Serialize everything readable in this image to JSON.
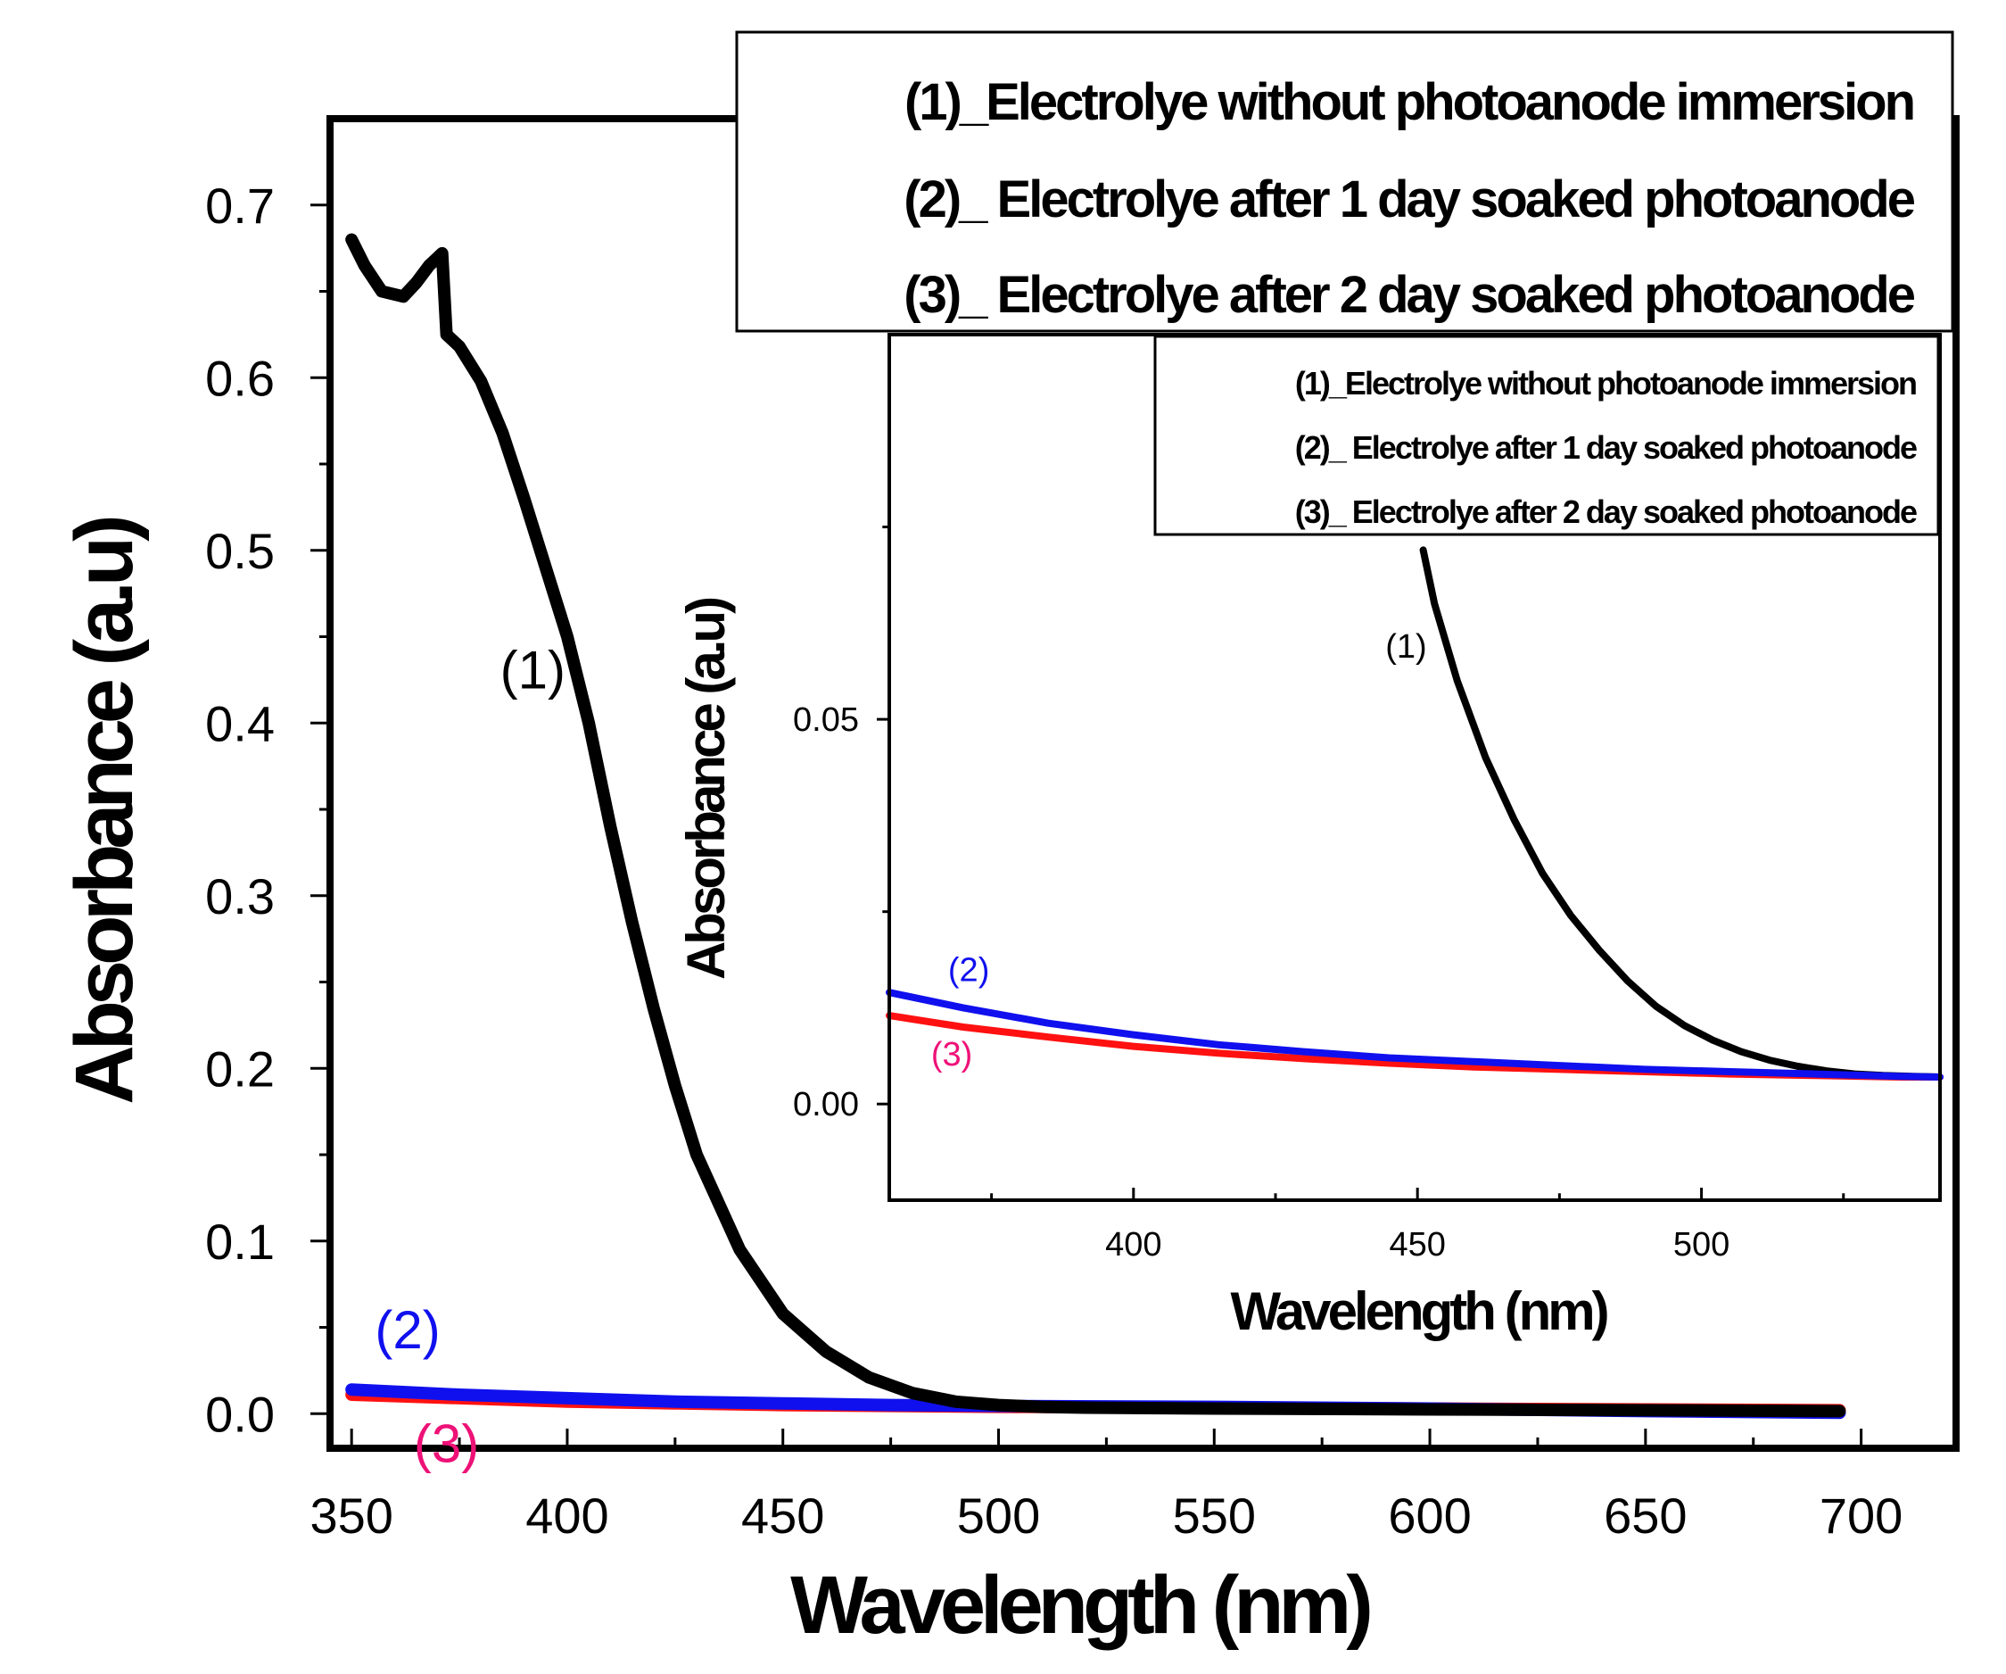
{
  "chart_data": [
    {
      "type": "line",
      "role": "main",
      "xlabel": "Wavelength (nm)",
      "ylabel": "Absorbance (a.u)",
      "xlim": [
        345,
        722
      ],
      "ylim": [
        -0.02,
        0.75
      ],
      "xticks": [
        350,
        400,
        450,
        500,
        550,
        600,
        650,
        700
      ],
      "xtick_labels": [
        "350",
        "400",
        "450",
        "500",
        "550",
        "600",
        "650",
        "700"
      ],
      "yticks": [
        0.0,
        0.1,
        0.2,
        0.3,
        0.4,
        0.5,
        0.6,
        0.7
      ],
      "ytick_labels": [
        "0.0",
        "0.1",
        "0.2",
        "0.3",
        "0.4",
        "0.5",
        "0.6",
        "0.7"
      ],
      "legend": {
        "position": "top-right",
        "entries": [
          "(1)_Electrolye without photoanode immersion",
          "(2)_ Electrolye after 1 day soaked photoanode",
          "(3)_ Electrolye after 2 day soaked photoanode"
        ]
      },
      "annotations": [
        {
          "text": "(1)",
          "series": 0,
          "at": [
            392,
            0.42
          ],
          "color": "#000000"
        },
        {
          "text": "(2)",
          "series": 1,
          "at": [
            363,
            0.038
          ],
          "color": "#1010ee"
        },
        {
          "text": "(3)",
          "series": 2,
          "at": [
            372,
            -0.028
          ],
          "color": "#ee1177"
        }
      ],
      "series": [
        {
          "name": "(1)",
          "color": "#000000",
          "x": [
            350,
            353,
            357,
            362,
            365,
            368,
            371,
            372,
            375,
            380,
            385,
            390,
            395,
            400,
            405,
            410,
            415,
            420,
            425,
            430,
            440,
            450,
            460,
            470,
            480,
            490,
            500,
            510,
            520,
            550,
            600,
            650,
            695
          ],
          "y": [
            0.68,
            0.665,
            0.65,
            0.647,
            0.655,
            0.665,
            0.672,
            0.625,
            0.618,
            0.598,
            0.568,
            0.53,
            0.49,
            0.45,
            0.4,
            0.34,
            0.285,
            0.235,
            0.19,
            0.15,
            0.095,
            0.058,
            0.036,
            0.021,
            0.012,
            0.007,
            0.005,
            0.004,
            0.0035,
            0.003,
            0.0025,
            0.002,
            0.0015
          ]
        },
        {
          "name": "(2)",
          "color": "#1010ee",
          "x": [
            350,
            375,
            400,
            425,
            450,
            475,
            500,
            550,
            600,
            650,
            695
          ],
          "y": [
            0.014,
            0.011,
            0.009,
            0.007,
            0.006,
            0.005,
            0.0045,
            0.004,
            0.003,
            0.0015,
            0.0005
          ]
        },
        {
          "name": "(3)",
          "color": "#ff1111",
          "x": [
            350,
            375,
            400,
            425,
            450,
            475,
            500,
            550,
            600,
            650,
            695
          ],
          "y": [
            0.011,
            0.009,
            0.007,
            0.006,
            0.005,
            0.0045,
            0.004,
            0.0035,
            0.003,
            0.0025,
            0.002
          ]
        }
      ]
    },
    {
      "type": "line",
      "role": "inset",
      "xlabel": "Wavelength (nm)",
      "ylabel": "Absorbance (a.u)",
      "xlim": [
        357,
        542
      ],
      "ylim": [
        -0.0125,
        0.1
      ],
      "xticks": [
        400,
        450,
        500
      ],
      "xtick_labels": [
        "400",
        "450",
        "500"
      ],
      "yticks": [
        0.0,
        0.05
      ],
      "ytick_labels": [
        "0.00",
        "0.05"
      ],
      "legend": {
        "position": "top-right",
        "entries": [
          "(1)_Electrolye without photoanode immersion",
          "(2)_ Electrolye after 1 day soaked photoanode",
          "(3)_ Electrolye after 2 day soaked photoanode"
        ]
      },
      "annotations": [
        {
          "text": "(1)",
          "series": 0,
          "at": [
            448,
            0.058
          ],
          "color": "#000000"
        },
        {
          "text": "(2)",
          "series": 1,
          "at": [
            371,
            0.016
          ],
          "color": "#1010ee"
        },
        {
          "text": "(3)",
          "series": 2,
          "at": [
            368,
            0.005
          ],
          "color": "#ee1177"
        }
      ],
      "series": [
        {
          "name": "(1)",
          "color": "#000000",
          "x": [
            451,
            453,
            457,
            462,
            467,
            472,
            477,
            482,
            487,
            492,
            497,
            502,
            507,
            512,
            517,
            522,
            527,
            532,
            537,
            542
          ],
          "y": [
            0.072,
            0.065,
            0.055,
            0.045,
            0.037,
            0.03,
            0.0245,
            0.02,
            0.016,
            0.0127,
            0.0102,
            0.0083,
            0.0068,
            0.0057,
            0.0049,
            0.0043,
            0.0039,
            0.0037,
            0.0036,
            0.0035
          ]
        },
        {
          "name": "(2)",
          "color": "#1010ee",
          "x": [
            357,
            370,
            385,
            400,
            415,
            430,
            445,
            460,
            475,
            490,
            505,
            520,
            535,
            542
          ],
          "y": [
            0.0145,
            0.0125,
            0.0105,
            0.009,
            0.0077,
            0.0068,
            0.006,
            0.0055,
            0.005,
            0.0045,
            0.0042,
            0.0039,
            0.0036,
            0.0035
          ]
        },
        {
          "name": "(3)",
          "color": "#ff1111",
          "x": [
            357,
            370,
            385,
            400,
            415,
            430,
            445,
            460,
            475,
            490,
            505,
            520,
            535,
            542
          ],
          "y": [
            0.0115,
            0.01,
            0.0087,
            0.0075,
            0.0066,
            0.0059,
            0.0053,
            0.0048,
            0.0045,
            0.0042,
            0.0039,
            0.0037,
            0.0035,
            0.0035
          ]
        }
      ]
    }
  ]
}
